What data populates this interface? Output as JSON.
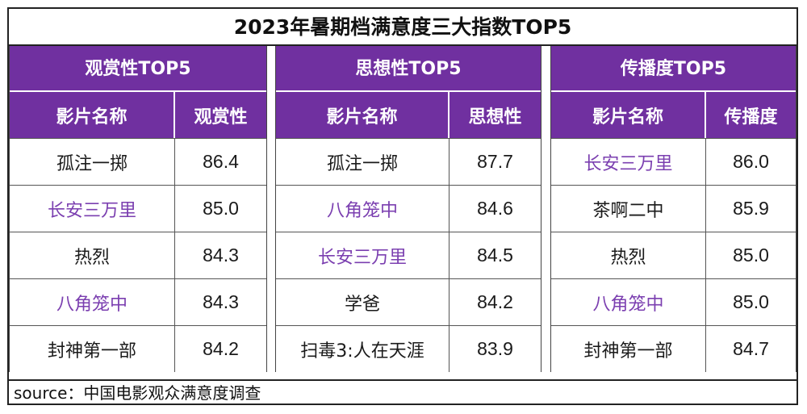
{
  "title": "2023年暑期档满意度三大指数TOP5",
  "source": "source：中国电影观众满意度调查",
  "tables": [
    {
      "header": "观赏性TOP5",
      "name_col": "影片名称",
      "value_col": "观赏性",
      "rows": [
        {
          "name": "孤注一掷",
          "value": "86.4",
          "highlight": false
        },
        {
          "name": "长安三万里",
          "value": "85.0",
          "highlight": true
        },
        {
          "name": "热烈",
          "value": "84.3",
          "highlight": false
        },
        {
          "name": "八角笼中",
          "value": "84.3",
          "highlight": true
        },
        {
          "name": "封神第一部",
          "value": "84.2",
          "highlight": false
        }
      ]
    },
    {
      "header": "思想性TOP5",
      "name_col": "影片名称",
      "value_col": "思想性",
      "rows": [
        {
          "name": "孤注一掷",
          "value": "87.7",
          "highlight": false
        },
        {
          "name": "八角笼中",
          "value": "84.6",
          "highlight": true
        },
        {
          "name": "长安三万里",
          "value": "84.5",
          "highlight": true
        },
        {
          "name": "学爸",
          "value": "84.2",
          "highlight": false
        },
        {
          "name": "扫毒3:人在天涯",
          "value": "83.9",
          "highlight": false
        }
      ]
    },
    {
      "header": "传播度TOP5",
      "name_col": "影片名称",
      "value_col": "传播度",
      "rows": [
        {
          "name": "长安三万里",
          "value": "86.0",
          "highlight": true
        },
        {
          "name": "茶啊二中",
          "value": "85.9",
          "highlight": false
        },
        {
          "name": "热烈",
          "value": "85.0",
          "highlight": false
        },
        {
          "name": "八角笼中",
          "value": "85.0",
          "highlight": true
        },
        {
          "name": "封神第一部",
          "value": "84.7",
          "highlight": false
        }
      ]
    }
  ],
  "colors": {
    "header_bg": "#7030a0",
    "highlight_text": "#7b3fb0"
  }
}
